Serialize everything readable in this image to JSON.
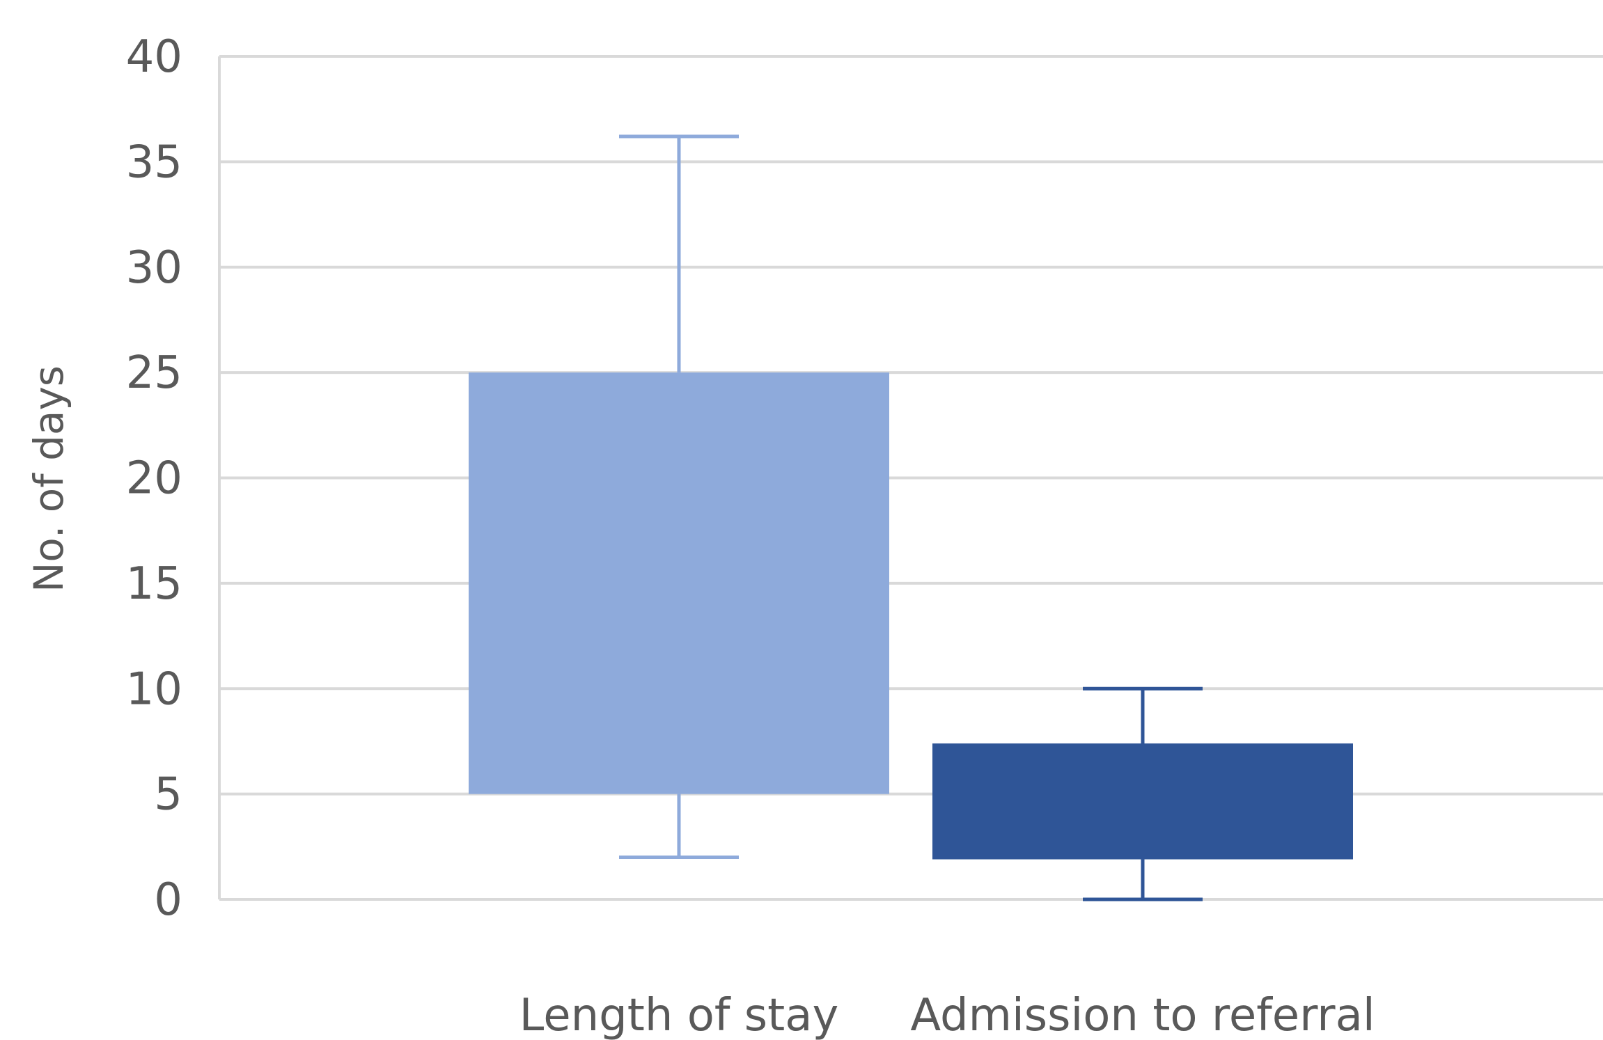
{
  "chart_data": {
    "type": "box",
    "ylabel": "No. of days",
    "ylim": [
      0,
      40
    ],
    "yticks": [
      0,
      5,
      10,
      15,
      20,
      25,
      30,
      35,
      40
    ],
    "grid": true,
    "categories": [
      "Length of stay",
      "Admission to referral"
    ],
    "series": [
      {
        "category": "Length of stay",
        "whisker_low": 2,
        "box_low": 5,
        "box_high": 25,
        "whisker_high": 36.2,
        "color": "#8eaadb"
      },
      {
        "category": "Admission to referral",
        "whisker_low": 0,
        "box_low": 1.9,
        "box_high": 7.4,
        "whisker_high": 10,
        "color": "#2f5597"
      }
    ],
    "gridline_color": "#d9d9d9"
  }
}
